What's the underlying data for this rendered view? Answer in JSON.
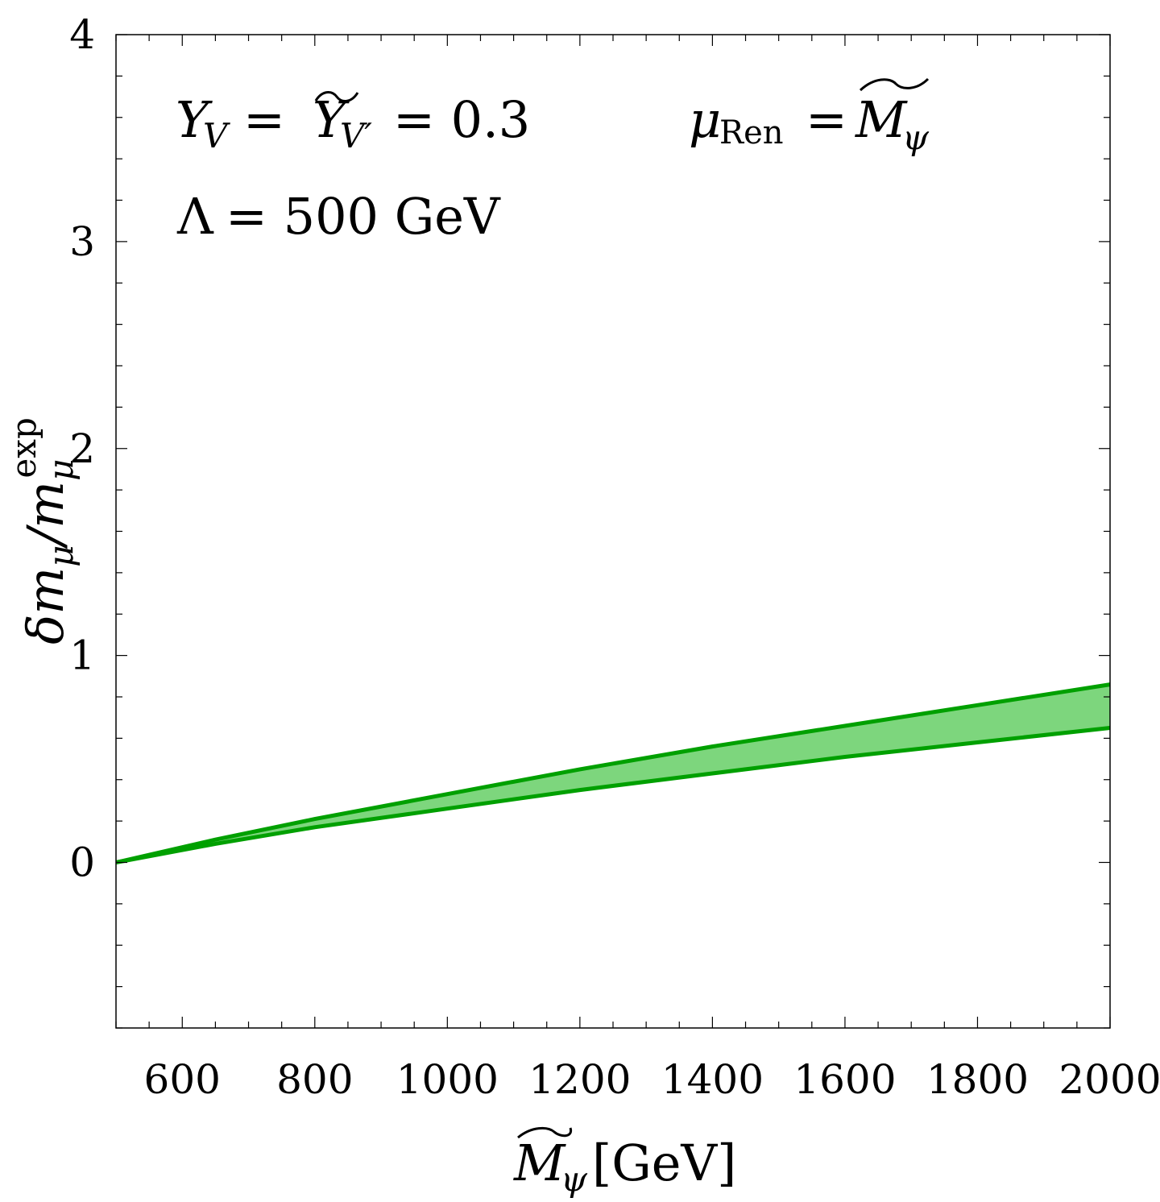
{
  "chart_data": {
    "type": "area",
    "xlim": [
      500,
      2000
    ],
    "ylim": [
      -0.8,
      4
    ],
    "x_ticks": [
      600,
      800,
      1000,
      1200,
      1400,
      1600,
      1800,
      2000
    ],
    "x_tick_labels": [
      "600",
      "800",
      "1000",
      "1200",
      "1400",
      "1600",
      "1800",
      "2000"
    ],
    "y_ticks": [
      0,
      1,
      2,
      3,
      4
    ],
    "y_tick_labels": [
      "0",
      "1",
      "2",
      "3",
      "4"
    ],
    "x_minor_step": 50,
    "y_minor_step": 0.2,
    "grid": false,
    "xlabel": {
      "main": "M",
      "subscript": "ψ",
      "unit": "[GeV]"
    },
    "ylabel": {
      "delta": "δm",
      "sub1": "μ",
      "slash": "/m",
      "sub2": "μ",
      "sup": "exp"
    },
    "annotations": {
      "coupling": {
        "y": "Y",
        "sub": "V",
        "eq": "=",
        "y2": "Y",
        "sub2": "V′",
        "value": "= 0.3"
      },
      "lambda": {
        "symbol": "Λ",
        "value": "= 500 GeV"
      },
      "renorm": {
        "mu": "μ",
        "sub": "Ren",
        "eq": "=",
        "m": "M",
        "msub": "ψ"
      }
    },
    "band": {
      "color": "#00a000",
      "fill": "#7dd67d",
      "upper": {
        "x": [
          500,
          650,
          800,
          1000,
          1200,
          1400,
          1600,
          1800,
          2000
        ],
        "y": [
          0,
          0.11,
          0.21,
          0.33,
          0.45,
          0.56,
          0.66,
          0.76,
          0.86
        ]
      },
      "lower": {
        "x": [
          500,
          650,
          800,
          1000,
          1200,
          1400,
          1600,
          1800,
          2000
        ],
        "y": [
          0,
          0.09,
          0.17,
          0.26,
          0.35,
          0.43,
          0.51,
          0.58,
          0.65
        ]
      }
    }
  }
}
